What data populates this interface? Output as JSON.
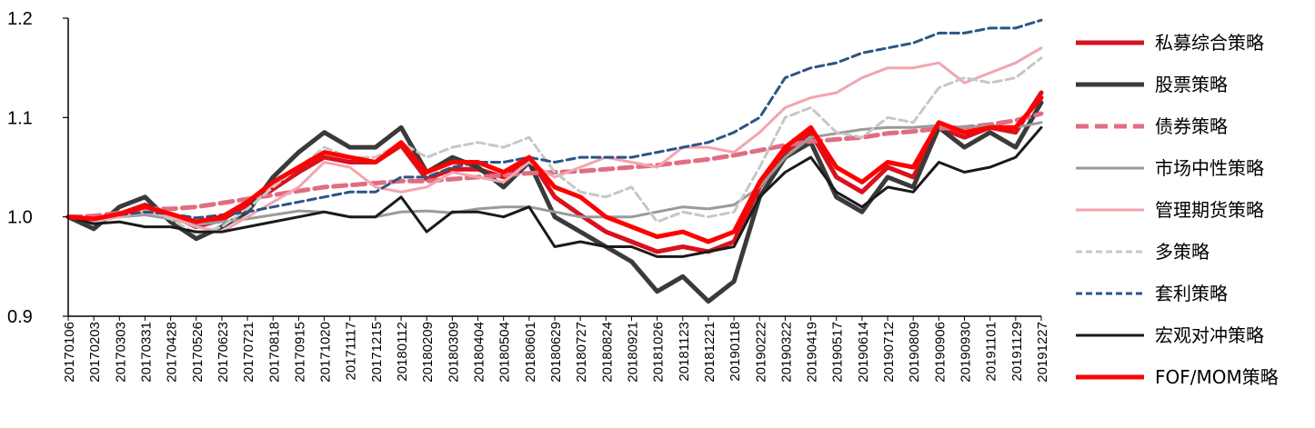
{
  "chart_data": {
    "type": "line",
    "title": "",
    "xlabel": "",
    "ylabel": "",
    "ylim": [
      0.9,
      1.2
    ],
    "yticks": [
      "0.9",
      "1.0",
      "1.1",
      "1.2"
    ],
    "grid": false,
    "legend_position": "right",
    "x": [
      "20170106",
      "20170203",
      "20170303",
      "20170331",
      "20170428",
      "20170526",
      "20170623",
      "20170721",
      "20170818",
      "20170915",
      "20171020",
      "20171117",
      "20171215",
      "20180112",
      "20180209",
      "20180309",
      "20180404",
      "20180504",
      "20180601",
      "20180629",
      "20180727",
      "20180824",
      "20180921",
      "20181026",
      "20181123",
      "20181221",
      "20190118",
      "20190222",
      "20190322",
      "20190419",
      "20190517",
      "20190614",
      "20190712",
      "20190809",
      "20190906",
      "20190930",
      "20191101",
      "20191129",
      "20191227"
    ],
    "series": [
      {
        "name": "私募综合策略",
        "color": "#d9111e",
        "style": "solid",
        "width": 5,
        "values": [
          1.0,
          0.995,
          1.003,
          1.012,
          1.002,
          0.99,
          0.997,
          1.012,
          1.028,
          1.045,
          1.06,
          1.055,
          1.055,
          1.072,
          1.038,
          1.048,
          1.048,
          1.04,
          1.06,
          1.02,
          1.002,
          0.985,
          0.975,
          0.965,
          0.97,
          0.965,
          0.975,
          1.03,
          1.065,
          1.085,
          1.04,
          1.025,
          1.05,
          1.04,
          1.09,
          1.08,
          1.09,
          1.085,
          1.125
        ]
      },
      {
        "name": "股票策略",
        "color": "#3a3a3a",
        "style": "solid",
        "width": 5,
        "values": [
          1.0,
          0.988,
          1.01,
          1.02,
          0.995,
          0.978,
          0.99,
          1.005,
          1.04,
          1.065,
          1.085,
          1.07,
          1.07,
          1.09,
          1.045,
          1.06,
          1.05,
          1.03,
          1.055,
          1.0,
          0.985,
          0.97,
          0.955,
          0.925,
          0.94,
          0.915,
          0.935,
          1.02,
          1.06,
          1.075,
          1.02,
          1.005,
          1.04,
          1.03,
          1.09,
          1.07,
          1.085,
          1.07,
          1.115
        ]
      },
      {
        "name": "债券策略",
        "color": "#e06d82",
        "style": "dashed",
        "width": 5,
        "values": [
          1.0,
          1.001,
          1.004,
          1.008,
          1.008,
          1.01,
          1.014,
          1.018,
          1.022,
          1.026,
          1.03,
          1.032,
          1.034,
          1.036,
          1.036,
          1.038,
          1.04,
          1.042,
          1.044,
          1.045,
          1.046,
          1.048,
          1.05,
          1.052,
          1.055,
          1.058,
          1.062,
          1.067,
          1.072,
          1.076,
          1.078,
          1.08,
          1.084,
          1.086,
          1.089,
          1.09,
          1.093,
          1.097,
          1.104
        ]
      },
      {
        "name": "市场中性策略",
        "color": "#9a9a9a",
        "style": "solid",
        "width": 3,
        "values": [
          1.0,
          0.997,
          1.0,
          1.002,
          0.998,
          0.992,
          0.995,
          0.998,
          1.002,
          1.006,
          1.005,
          1.0,
          1.0,
          1.005,
          1.006,
          1.004,
          1.008,
          1.01,
          1.01,
          1.005,
          1.0,
          1.0,
          1.0,
          1.005,
          1.01,
          1.008,
          1.012,
          1.03,
          1.06,
          1.08,
          1.084,
          1.088,
          1.09,
          1.09,
          1.092,
          1.09,
          1.092,
          1.09,
          1.095
        ]
      },
      {
        "name": "管理期货策略",
        "color": "#f2a5b0",
        "style": "solid",
        "width": 3,
        "values": [
          1.0,
          0.995,
          1.0,
          1.005,
          1.0,
          0.99,
          0.985,
          1.0,
          1.015,
          1.03,
          1.055,
          1.05,
          1.03,
          1.025,
          1.03,
          1.045,
          1.04,
          1.035,
          1.055,
          1.04,
          1.05,
          1.06,
          1.055,
          1.05,
          1.07,
          1.07,
          1.065,
          1.085,
          1.11,
          1.12,
          1.125,
          1.14,
          1.15,
          1.15,
          1.155,
          1.135,
          1.145,
          1.155,
          1.17
        ]
      },
      {
        "name": "多策略",
        "color": "#c7c7c7",
        "style": "dashed",
        "width": 3,
        "values": [
          1.0,
          0.993,
          1.003,
          1.008,
          0.998,
          0.983,
          0.99,
          1.008,
          1.03,
          1.05,
          1.07,
          1.06,
          1.06,
          1.075,
          1.06,
          1.07,
          1.075,
          1.07,
          1.08,
          1.045,
          1.025,
          1.02,
          1.03,
          0.995,
          1.005,
          1.0,
          1.005,
          1.05,
          1.1,
          1.11,
          1.085,
          1.08,
          1.1,
          1.095,
          1.13,
          1.14,
          1.135,
          1.14,
          1.16
        ]
      },
      {
        "name": "套利策略",
        "color": "#2b5585",
        "style": "dashed",
        "width": 3,
        "values": [
          1.0,
          0.998,
          1.002,
          1.005,
          1.003,
          0.999,
          1.002,
          1.005,
          1.01,
          1.015,
          1.02,
          1.025,
          1.025,
          1.04,
          1.04,
          1.05,
          1.055,
          1.055,
          1.06,
          1.055,
          1.06,
          1.06,
          1.06,
          1.065,
          1.07,
          1.075,
          1.085,
          1.1,
          1.14,
          1.15,
          1.155,
          1.165,
          1.17,
          1.175,
          1.185,
          1.185,
          1.19,
          1.19,
          1.198
        ]
      },
      {
        "name": "宏观对冲策略",
        "color": "#1a1a1a",
        "style": "solid",
        "width": 3,
        "values": [
          1.0,
          0.993,
          0.995,
          0.99,
          0.99,
          0.985,
          0.985,
          0.99,
          0.995,
          1.0,
          1.005,
          1.0,
          1.0,
          1.02,
          0.985,
          1.005,
          1.005,
          1.0,
          1.01,
          0.97,
          0.975,
          0.97,
          0.97,
          0.96,
          0.96,
          0.965,
          0.97,
          1.02,
          1.045,
          1.06,
          1.025,
          1.01,
          1.03,
          1.025,
          1.055,
          1.045,
          1.05,
          1.06,
          1.09
        ]
      },
      {
        "name": "FOF/MOM策略",
        "color": "#ff0000",
        "style": "solid",
        "width": 5,
        "values": [
          1.0,
          0.998,
          1.003,
          1.01,
          1.003,
          0.995,
          1.0,
          1.015,
          1.035,
          1.05,
          1.065,
          1.06,
          1.055,
          1.075,
          1.045,
          1.055,
          1.055,
          1.045,
          1.06,
          1.03,
          1.02,
          1.0,
          0.99,
          0.98,
          0.985,
          0.975,
          0.985,
          1.035,
          1.07,
          1.09,
          1.05,
          1.035,
          1.055,
          1.05,
          1.095,
          1.085,
          1.09,
          1.09,
          1.12
        ]
      }
    ]
  }
}
